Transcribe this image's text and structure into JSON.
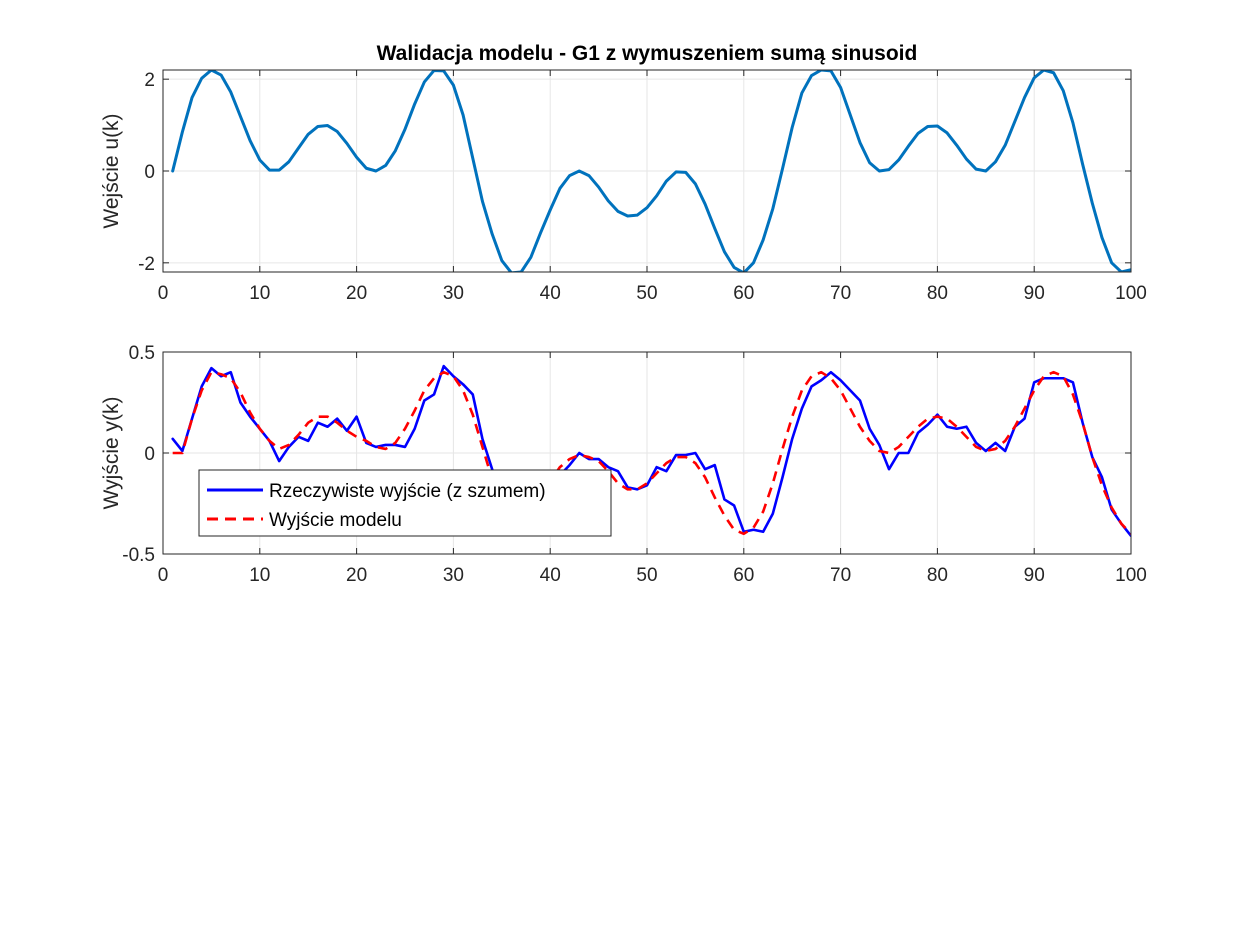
{
  "colors": {
    "input_line": "#0072BD",
    "real_output_line": "#0000FF",
    "model_output_line": "#FF0000",
    "grid": "#E6E6E6",
    "axes": "#262626"
  },
  "chart_data": [
    {
      "type": "line",
      "title": "Walidacja modelu - G1 z wymuszeniem sumą sinusoid",
      "xlabel": "",
      "ylabel": "Wejście u(k)",
      "xlim": [
        0,
        100
      ],
      "ylim": [
        -2.2,
        2.2
      ],
      "grid": true,
      "xticks": [
        "0",
        "10",
        "20",
        "30",
        "40",
        "50",
        "60",
        "70",
        "80",
        "90",
        "100"
      ],
      "yticks": [
        "-2",
        "0",
        "2"
      ],
      "series": [
        {
          "name": "",
          "x": [
            1,
            2,
            3,
            4,
            5,
            6,
            7,
            8,
            9,
            10,
            11,
            12,
            13,
            14,
            15,
            16,
            17,
            18,
            19,
            20,
            21,
            22,
            23,
            24,
            25,
            26,
            27,
            28,
            29,
            30,
            31,
            32,
            33,
            34,
            35,
            36,
            37,
            38,
            39,
            40,
            41,
            42,
            43,
            44,
            45,
            46,
            47,
            48,
            49,
            50,
            51,
            52,
            53,
            54,
            55,
            56,
            57,
            58,
            59,
            60,
            61,
            62,
            63,
            64,
            65,
            66,
            67,
            68,
            69,
            70,
            71,
            72,
            73,
            74,
            75,
            76,
            77,
            78,
            79,
            80,
            81,
            82,
            83,
            84,
            85,
            86,
            87,
            88,
            89,
            90,
            91,
            92,
            93,
            94,
            95,
            96,
            97,
            98,
            99,
            100
          ],
          "values": [
            0,
            0.85,
            1.6,
            2.02,
            2.2,
            2.09,
            1.72,
            1.19,
            0.66,
            0.24,
            0.02,
            0.02,
            0.2,
            0.5,
            0.8,
            0.97,
            0.99,
            0.86,
            0.6,
            0.3,
            0.06,
            0.0,
            0.12,
            0.44,
            0.91,
            1.46,
            1.94,
            2.19,
            2.18,
            1.87,
            1.22,
            0.28,
            -0.66,
            -1.37,
            -1.95,
            -2.22,
            -2.2,
            -1.88,
            -1.35,
            -0.85,
            -0.38,
            -0.1,
            0.0,
            -0.1,
            -0.35,
            -0.65,
            -0.88,
            -0.98,
            -0.96,
            -0.8,
            -0.54,
            -0.22,
            -0.02,
            -0.03,
            -0.28,
            -0.72,
            -1.25,
            -1.76,
            -2.1,
            -2.22,
            -2.0,
            -1.5,
            -0.82,
            0.05,
            0.95,
            1.7,
            2.08,
            2.2,
            2.18,
            1.82,
            1.22,
            0.62,
            0.18,
            0.0,
            0.03,
            0.24,
            0.54,
            0.82,
            0.97,
            0.98,
            0.83,
            0.56,
            0.26,
            0.04,
            0.0,
            0.2,
            0.56,
            1.08,
            1.6,
            2.03,
            2.2,
            2.14,
            1.75,
            1.05,
            0.15,
            -0.7,
            -1.45,
            -2.0,
            -2.2,
            -2.15
          ]
        }
      ]
    },
    {
      "type": "line",
      "title": "",
      "xlabel": "",
      "ylabel": "Wyjście y(k)",
      "xlim": [
        0,
        100
      ],
      "ylim": [
        -0.5,
        0.5
      ],
      "grid": true,
      "xticks": [
        "0",
        "10",
        "20",
        "30",
        "40",
        "50",
        "60",
        "70",
        "80",
        "90",
        "100"
      ],
      "yticks": [
        "-0.5",
        "0",
        "0.5"
      ],
      "legend": {
        "placement": "inside-lower-left"
      },
      "series": [
        {
          "name": "Rzeczywiste wyjście (z szumem)",
          "x": [
            1,
            2,
            3,
            4,
            5,
            6,
            7,
            8,
            9,
            10,
            11,
            12,
            13,
            14,
            15,
            16,
            17,
            18,
            19,
            20,
            21,
            22,
            23,
            24,
            25,
            26,
            27,
            28,
            29,
            30,
            31,
            32,
            33,
            34,
            35,
            36,
            37,
            38,
            39,
            40,
            41,
            42,
            43,
            44,
            45,
            46,
            47,
            48,
            49,
            50,
            51,
            52,
            53,
            54,
            55,
            56,
            57,
            58,
            59,
            60,
            61,
            62,
            63,
            64,
            65,
            66,
            67,
            68,
            69,
            70,
            71,
            72,
            73,
            74,
            75,
            76,
            77,
            78,
            79,
            80,
            81,
            82,
            83,
            84,
            85,
            86,
            87,
            88,
            89,
            90,
            91,
            92,
            93,
            94,
            95,
            96,
            97,
            98,
            99,
            100
          ],
          "values": [
            0.07,
            0.01,
            0.17,
            0.33,
            0.42,
            0.38,
            0.4,
            0.25,
            0.18,
            0.12,
            0.06,
            -0.04,
            0.03,
            0.08,
            0.06,
            0.15,
            0.13,
            0.17,
            0.11,
            0.18,
            0.05,
            0.03,
            0.04,
            0.04,
            0.03,
            0.12,
            0.26,
            0.29,
            0.43,
            0.38,
            0.34,
            0.29,
            0.07,
            -0.08,
            -0.24,
            -0.37,
            -0.39,
            -0.31,
            -0.21,
            -0.16,
            -0.11,
            -0.06,
            0.0,
            -0.03,
            -0.03,
            -0.07,
            -0.09,
            -0.17,
            -0.18,
            -0.16,
            -0.07,
            -0.09,
            -0.01,
            -0.01,
            0.0,
            -0.08,
            -0.06,
            -0.23,
            -0.26,
            -0.39,
            -0.38,
            -0.39,
            -0.3,
            -0.12,
            0.07,
            0.22,
            0.33,
            0.36,
            0.4,
            0.36,
            0.31,
            0.26,
            0.12,
            0.04,
            -0.08,
            0.0,
            0.0,
            0.1,
            0.14,
            0.19,
            0.13,
            0.12,
            0.13,
            0.05,
            0.01,
            0.05,
            0.01,
            0.13,
            0.17,
            0.35,
            0.37,
            0.37,
            0.37,
            0.35,
            0.15,
            -0.02,
            -0.12,
            -0.28,
            -0.35,
            -0.41
          ]
        },
        {
          "name": "Wyjście modelu",
          "x": [
            1,
            2,
            3,
            4,
            5,
            6,
            7,
            8,
            9,
            10,
            11,
            12,
            13,
            14,
            15,
            16,
            17,
            18,
            19,
            20,
            21,
            22,
            23,
            24,
            25,
            26,
            27,
            28,
            29,
            30,
            31,
            32,
            33,
            34,
            35,
            36,
            37,
            38,
            39,
            40,
            41,
            42,
            43,
            44,
            45,
            46,
            47,
            48,
            49,
            50,
            51,
            52,
            53,
            54,
            55,
            56,
            57,
            58,
            59,
            60,
            61,
            62,
            63,
            64,
            65,
            66,
            67,
            68,
            69,
            70,
            71,
            72,
            73,
            74,
            75,
            76,
            77,
            78,
            79,
            80,
            81,
            82,
            83,
            84,
            85,
            86,
            87,
            88,
            89,
            90,
            91,
            92,
            93,
            94,
            95,
            96,
            97,
            98,
            99,
            100
          ],
          "values": [
            0.0,
            0.0,
            0.17,
            0.31,
            0.4,
            0.39,
            0.37,
            0.3,
            0.2,
            0.12,
            0.06,
            0.02,
            0.04,
            0.09,
            0.15,
            0.18,
            0.18,
            0.15,
            0.11,
            0.08,
            0.06,
            0.03,
            0.02,
            0.05,
            0.12,
            0.21,
            0.31,
            0.37,
            0.4,
            0.38,
            0.31,
            0.19,
            0.03,
            -0.13,
            -0.27,
            -0.37,
            -0.38,
            -0.32,
            -0.23,
            -0.14,
            -0.07,
            -0.03,
            -0.01,
            -0.02,
            -0.04,
            -0.09,
            -0.15,
            -0.18,
            -0.18,
            -0.15,
            -0.1,
            -0.05,
            -0.02,
            -0.02,
            -0.05,
            -0.12,
            -0.22,
            -0.31,
            -0.38,
            -0.4,
            -0.37,
            -0.29,
            -0.15,
            0.02,
            0.18,
            0.31,
            0.38,
            0.4,
            0.37,
            0.31,
            0.22,
            0.13,
            0.06,
            0.01,
            0.0,
            0.03,
            0.08,
            0.13,
            0.17,
            0.18,
            0.17,
            0.13,
            0.08,
            0.03,
            0.01,
            0.02,
            0.06,
            0.13,
            0.22,
            0.31,
            0.38,
            0.4,
            0.38,
            0.29,
            0.15,
            -0.02,
            -0.16,
            -0.27,
            -0.35,
            -0.4
          ]
        }
      ]
    }
  ]
}
